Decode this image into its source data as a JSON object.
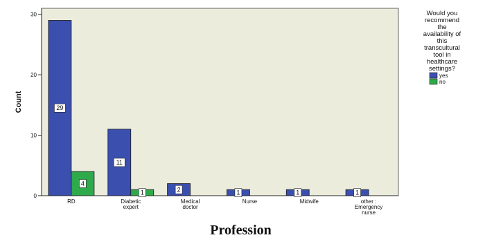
{
  "chart_data": {
    "type": "bar",
    "categories": [
      "RD",
      "Diabetic expert",
      "Medical doctor",
      "Nurse",
      "Midwife",
      "other : Emergency nurse"
    ],
    "category_lines": [
      [
        "RD"
      ],
      [
        "Diabetic",
        "expert"
      ],
      [
        "Medical",
        "doctor"
      ],
      [
        "Nurse"
      ],
      [
        "Midwife"
      ],
      [
        "other :",
        "Emergency",
        "nurse"
      ]
    ],
    "series": [
      {
        "name": "yes",
        "values": [
          29,
          11,
          2,
          1,
          1,
          1
        ],
        "color": "#3a4fae"
      },
      {
        "name": "no",
        "values": [
          4,
          1,
          0,
          0,
          0,
          0
        ],
        "color": "#2eaa4a"
      }
    ],
    "data_labels": [
      [
        "29",
        "11",
        "2",
        "1",
        "1",
        "1"
      ],
      [
        "4",
        "1",
        "",
        "",
        "",
        ""
      ]
    ],
    "xlabel": "Profession",
    "ylabel": "Count",
    "ylim": [
      0,
      31
    ],
    "yticks": [
      "0",
      "10",
      "20",
      "30"
    ],
    "ytick_values": [
      0,
      10,
      20,
      30
    ],
    "legend": {
      "title_lines": [
        "Would you",
        "recommend",
        "the",
        "availability of",
        "this",
        "transcultural",
        "tool in",
        "healthcare",
        "settings?"
      ],
      "entries": [
        "yes",
        "no"
      ],
      "placement": "right"
    },
    "plot_background": "#ececdc",
    "grid": false
  }
}
